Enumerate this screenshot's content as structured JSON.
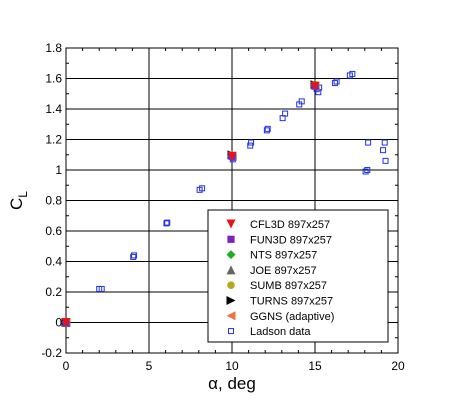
{
  "chart_data": {
    "type": "scatter",
    "xlabel": "α, deg",
    "ylabel_main": "C",
    "ylabel_sub": "L",
    "xlim": [
      0,
      20
    ],
    "ylim": [
      -0.2,
      1.8
    ],
    "xticks": [
      0,
      5,
      10,
      15,
      20
    ],
    "yticks": [
      -0.2,
      0,
      0.2,
      0.4,
      0.6,
      0.8,
      1,
      1.2,
      1.4,
      1.6,
      1.8
    ],
    "grid": true,
    "legend_position": "bottom-right",
    "series": [
      {
        "name": "CFL3D 897x257",
        "marker": "triangle-down",
        "color": "#e8141c",
        "points": [
          [
            0,
            0.0
          ],
          [
            10,
            1.09
          ],
          [
            15,
            1.55
          ]
        ]
      },
      {
        "name": "FUN3D 897x257",
        "marker": "square",
        "color": "#7b22c4",
        "points": [
          [
            0,
            0.0
          ],
          [
            10,
            1.09
          ],
          [
            15,
            1.55
          ]
        ]
      },
      {
        "name": "NTS 897x257",
        "marker": "diamond",
        "color": "#1fb01f",
        "points": [
          [
            0,
            0.0
          ],
          [
            10,
            1.09
          ],
          [
            15,
            1.56
          ]
        ]
      },
      {
        "name": "JOE 897x257",
        "marker": "triangle-up",
        "color": "#666666",
        "points": [
          [
            0,
            0.0
          ],
          [
            10,
            1.1
          ],
          [
            15,
            1.56
          ]
        ]
      },
      {
        "name": "SUMB 897x257",
        "marker": "circle",
        "color": "#b8a818",
        "points": [
          [
            0,
            0.0
          ],
          [
            10,
            1.09
          ],
          [
            15,
            1.55
          ]
        ]
      },
      {
        "name": "TURNS 897x257",
        "marker": "triangle-right",
        "color": "#000000",
        "points": [
          [
            0,
            0.0
          ],
          [
            10,
            1.1
          ],
          [
            15,
            1.56
          ]
        ]
      },
      {
        "name": "GGNS (adaptive)",
        "marker": "triangle-left",
        "color": "#f07040",
        "points": [
          [
            0,
            0.0
          ],
          [
            10,
            1.09
          ],
          [
            15,
            1.55
          ]
        ]
      },
      {
        "name": "Ladson data",
        "marker": "square-open",
        "color": "#2233dd",
        "points": [
          [
            -0.05,
            0.0
          ],
          [
            0.05,
            0.01
          ],
          [
            2.0,
            0.22
          ],
          [
            2.15,
            0.22
          ],
          [
            4.05,
            0.43
          ],
          [
            4.1,
            0.44
          ],
          [
            6.05,
            0.65
          ],
          [
            6.1,
            0.655
          ],
          [
            8.05,
            0.87
          ],
          [
            8.2,
            0.88
          ],
          [
            10.05,
            1.07
          ],
          [
            10.1,
            1.08
          ],
          [
            11.1,
            1.16
          ],
          [
            11.15,
            1.18
          ],
          [
            12.1,
            1.26
          ],
          [
            12.15,
            1.27
          ],
          [
            13.05,
            1.34
          ],
          [
            13.2,
            1.37
          ],
          [
            14.05,
            1.43
          ],
          [
            14.2,
            1.45
          ],
          [
            15.1,
            1.53
          ],
          [
            15.2,
            1.51
          ],
          [
            15.25,
            1.54
          ],
          [
            16.2,
            1.57
          ],
          [
            16.3,
            1.58
          ],
          [
            17.1,
            1.62
          ],
          [
            17.25,
            1.63
          ],
          [
            18.05,
            0.99
          ],
          [
            18.15,
            1.0
          ],
          [
            18.2,
            1.18
          ],
          [
            19.1,
            1.13
          ],
          [
            19.2,
            1.18
          ],
          [
            19.25,
            1.06
          ]
        ]
      }
    ]
  }
}
